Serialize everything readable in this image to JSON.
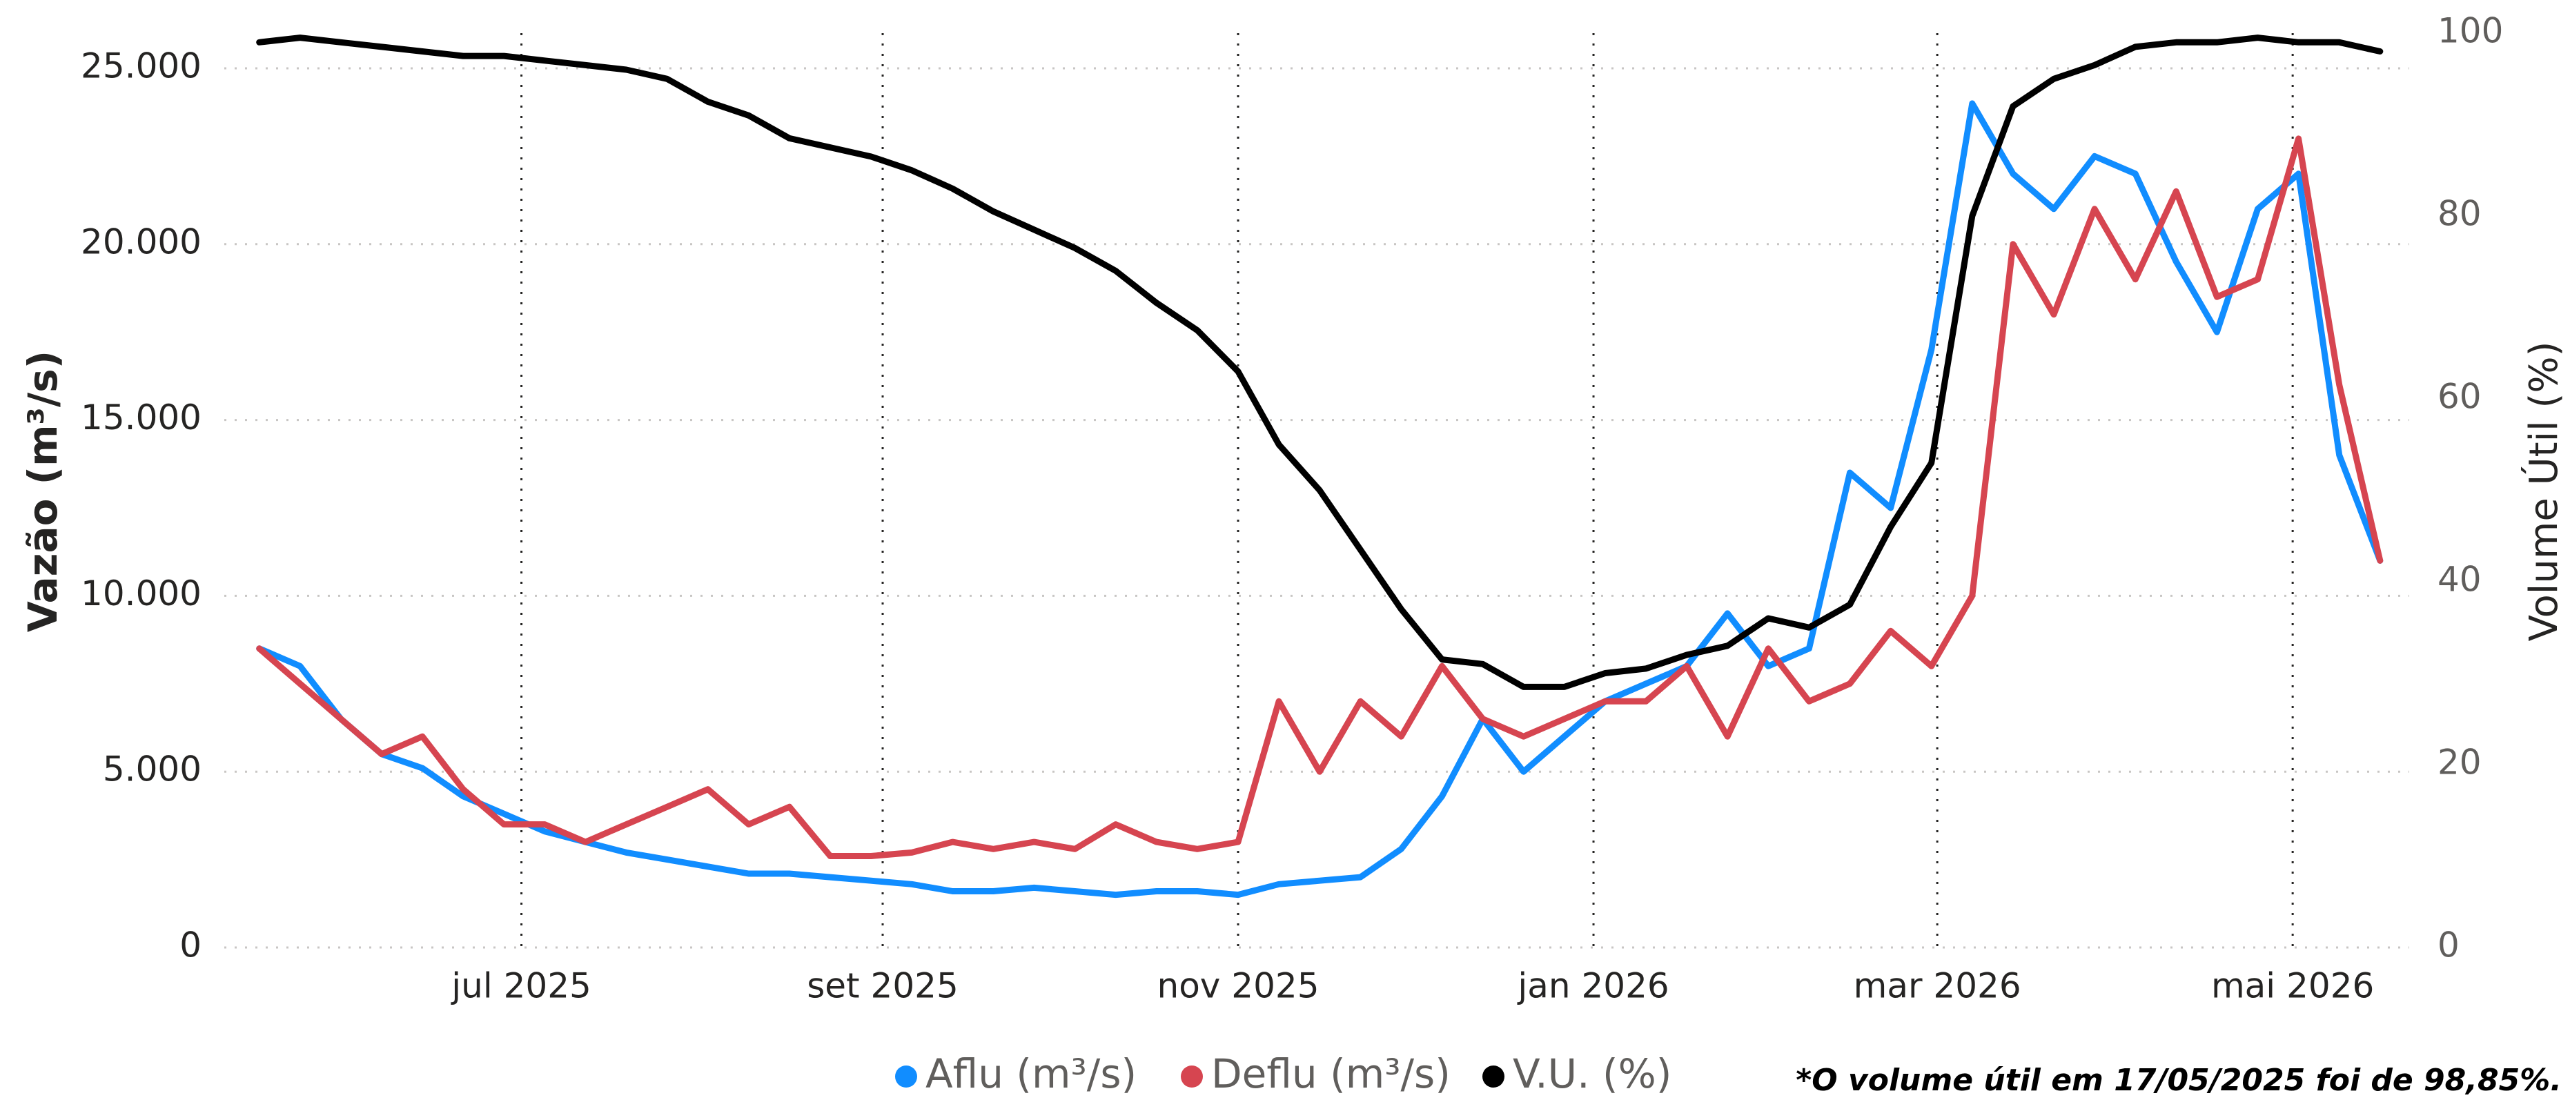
{
  "chart_data": {
    "type": "line",
    "x": [
      "2025-05-17",
      "2025-05-24",
      "2025-05-31",
      "2025-06-07",
      "2025-06-14",
      "2025-06-21",
      "2025-06-28",
      "2025-07-05",
      "2025-07-12",
      "2025-07-19",
      "2025-07-26",
      "2025-08-02",
      "2025-08-09",
      "2025-08-16",
      "2025-08-23",
      "2025-08-30",
      "2025-09-06",
      "2025-09-13",
      "2025-09-20",
      "2025-09-27",
      "2025-10-04",
      "2025-10-11",
      "2025-10-18",
      "2025-10-25",
      "2025-11-01",
      "2025-11-08",
      "2025-11-15",
      "2025-11-22",
      "2025-11-29",
      "2025-12-06",
      "2025-12-13",
      "2025-12-20",
      "2025-12-27",
      "2026-01-03",
      "2026-01-10",
      "2026-01-17",
      "2026-01-24",
      "2026-01-31",
      "2026-02-07",
      "2026-02-14",
      "2026-02-21",
      "2026-02-28",
      "2026-03-07",
      "2026-03-14",
      "2026-03-21",
      "2026-03-28",
      "2026-04-04",
      "2026-04-11",
      "2026-04-18",
      "2026-04-25",
      "2026-05-02",
      "2026-05-09",
      "2026-05-16"
    ],
    "xlim": [
      "2025-05-11",
      "2026-05-21"
    ],
    "xticks": [
      {
        "value": "2025-07-01",
        "label": "jul 2025"
      },
      {
        "value": "2025-09-01",
        "label": "set 2025"
      },
      {
        "value": "2025-11-01",
        "label": "nov 2025"
      },
      {
        "value": "2026-01-01",
        "label": "jan 2026"
      },
      {
        "value": "2026-03-01",
        "label": "mar 2026"
      },
      {
        "value": "2026-05-01",
        "label": "mai 2026"
      }
    ],
    "ylabel": "Vazão (m³/s)",
    "y2label": "Volume Útil (%)",
    "ylim": [
      0,
      26000
    ],
    "yticks": [
      0,
      {
        "value": 5000,
        "label": "5.000"
      },
      {
        "value": 10000,
        "label": "10.000"
      },
      {
        "value": 15000,
        "label": "15.000"
      },
      {
        "value": 20000,
        "label": "20.000"
      },
      {
        "value": 25000,
        "label": "25.000"
      }
    ],
    "y2lim": [
      0,
      100
    ],
    "y2ticks": [
      0,
      20,
      40,
      60,
      80,
      100
    ],
    "grid": true,
    "legend": "bottom",
    "annotation": "*O volume útil em 17/05/2025 foi de 98,85%.",
    "series": [
      {
        "name": "Aflu (m³/s)",
        "color": "#118DFF",
        "values": [
          8500,
          8000,
          6500,
          5500,
          5100,
          4300,
          3800,
          3300,
          3000,
          2700,
          2500,
          2300,
          2100,
          2100,
          2000,
          1900,
          1800,
          1600,
          1600,
          1700,
          1600,
          1500,
          1600,
          1600,
          1500,
          1800,
          1900,
          2000,
          2800,
          4300,
          6500,
          5000,
          6000,
          7000,
          7500,
          8000,
          9500,
          8000,
          8500,
          13500,
          12500,
          17000,
          24000,
          22000,
          21000,
          22500,
          22000,
          19500,
          17500,
          21000,
          22000,
          14000,
          11000
        ]
      },
      {
        "name": "Deflu (m³/s)",
        "color": "#D64550",
        "values": [
          8500,
          7500,
          6500,
          5500,
          6000,
          4500,
          3500,
          3500,
          3000,
          3500,
          4000,
          4500,
          3500,
          4000,
          2600,
          2600,
          2700,
          3000,
          2800,
          3000,
          2800,
          3500,
          3000,
          2800,
          3000,
          7000,
          5000,
          7000,
          6000,
          8000,
          6500,
          6000,
          6500,
          7000,
          7000,
          8000,
          6000,
          8500,
          7000,
          7500,
          9000,
          8000,
          10000,
          20000,
          18000,
          21000,
          19000,
          21500,
          18500,
          19000,
          23000,
          16000,
          11000
        ]
      },
      {
        "name": "V.U. (%)",
        "color": "#000000",
        "axis": "y2",
        "values": [
          99,
          99.5,
          99,
          98.5,
          98,
          97.5,
          97.5,
          97,
          96.5,
          96,
          95,
          92.5,
          91,
          88.5,
          87.5,
          86.5,
          85,
          83,
          80.5,
          78.5,
          76.5,
          74,
          70.5,
          67.5,
          63,
          55,
          50,
          43.5,
          37,
          31.5,
          31,
          28.5,
          28.5,
          30,
          30.5,
          32,
          33,
          36,
          35,
          37.5,
          46,
          53,
          80,
          92,
          95,
          96.5,
          98.5,
          99,
          99,
          99.5,
          99,
          99,
          98
        ]
      }
    ]
  }
}
